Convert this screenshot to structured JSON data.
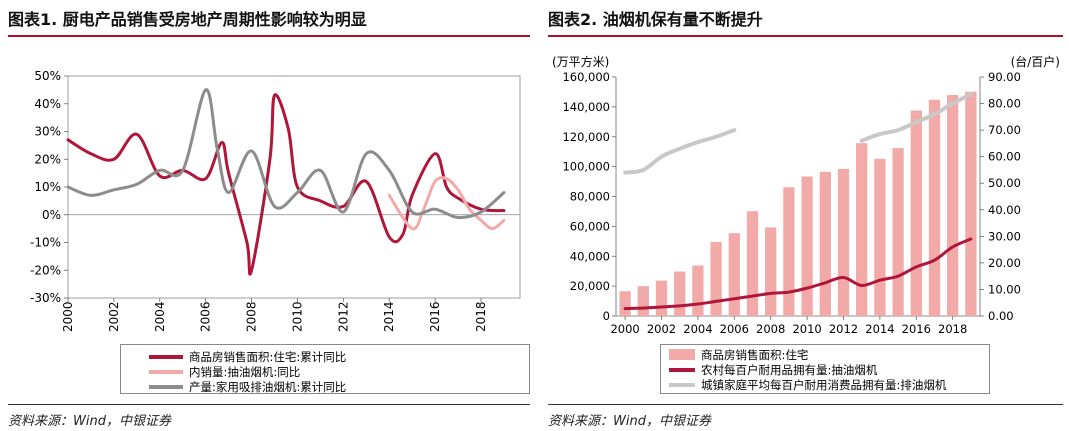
{
  "left": {
    "title": "图表1. 厨电产品销售受房地产周期性影响较为明显",
    "source": "资料来源：Wind，中银证券",
    "legend": [
      {
        "label": "商品房销售面积:住宅:累计同比",
        "color": "#b0153a"
      },
      {
        "label": "内销量:抽油烟机:同比",
        "color": "#f2aaa8"
      },
      {
        "label": "产量:家用吸排油烟机:累计同比",
        "color": "#8c8c8c"
      }
    ]
  },
  "right": {
    "title": "图表2. 油烟机保有量不断提升",
    "source": "资料来源：Wind，中银证券",
    "left_unit": "(万平方米)",
    "right_unit": "(台/百户)",
    "legend": [
      {
        "label": "商品房销售面积:住宅",
        "color": "#f2aaa8"
      },
      {
        "label": "农村每百户耐用品拥有量:抽油烟机",
        "color": "#b0153a"
      },
      {
        "label": "城镇家庭平均每百户耐用消费品拥有量:排油烟机",
        "color": "#c8c8c8"
      }
    ]
  },
  "chart_data": [
    {
      "type": "line",
      "title": "图表1. 厨电产品销售受房地产周期性影响较为明显",
      "ylim": [
        -30,
        50
      ],
      "yticks": [
        "50%",
        "40%",
        "30%",
        "20%",
        "10%",
        "0%",
        "-10%",
        "-20%",
        "-30%"
      ],
      "ytick_values": [
        50,
        40,
        30,
        20,
        10,
        0,
        -10,
        -20,
        -30
      ],
      "xlim": [
        2000,
        2019.7
      ],
      "xticks": [
        "2000",
        "2002",
        "2004",
        "2006",
        "2008",
        "2010",
        "2012",
        "2014",
        "2016",
        "2018"
      ],
      "xtick_values": [
        2000,
        2002,
        2004,
        2006,
        2008,
        2010,
        2012,
        2014,
        2016,
        2018
      ],
      "series": [
        {
          "name": "商品房销售面积:住宅:累计同比",
          "color": "#b0153a",
          "width": 3,
          "x": [
            2000,
            2001,
            2002,
            2003,
            2004,
            2005,
            2006,
            2006.7,
            2007,
            2007.8,
            2008,
            2008.8,
            2009,
            2009.6,
            2010,
            2011,
            2012,
            2013,
            2014,
            2014.6,
            2015,
            2016,
            2016.5,
            2017,
            2018,
            2019
          ],
          "y": [
            27,
            22,
            20,
            29,
            14,
            16,
            13,
            26,
            15,
            -10,
            -20,
            20,
            43,
            31,
            10,
            5,
            3,
            12,
            -8,
            -7,
            7,
            22,
            10,
            6,
            2,
            1.5
          ]
        },
        {
          "name": "内销量:抽油烟机:同比",
          "color": "#f2aaa8",
          "width": 3,
          "x": [
            2014,
            2015,
            2015.5,
            2016,
            2016.5,
            2017,
            2017.5,
            2018,
            2018.5,
            2019
          ],
          "y": [
            7,
            -5,
            2,
            12,
            13,
            9,
            2,
            -2,
            -5,
            -2
          ]
        },
        {
          "name": "产量:家用吸排油烟机:累计同比",
          "color": "#8c8c8c",
          "width": 3,
          "x": [
            2000,
            2001,
            2002,
            2003,
            2004,
            2005,
            2006,
            2006.5,
            2007,
            2008,
            2009,
            2010,
            2011,
            2012,
            2013,
            2014,
            2015,
            2016,
            2017,
            2018,
            2019
          ],
          "y": [
            10,
            7,
            9,
            11,
            16,
            16,
            45,
            24,
            8,
            23,
            3,
            8,
            16,
            1,
            22,
            16,
            1,
            2,
            -1,
            1,
            8
          ]
        }
      ]
    },
    {
      "type": "bar",
      "title": "图表2. 油烟机保有量不断提升",
      "categories": [
        "2000",
        "2001",
        "2002",
        "2003",
        "2004",
        "2005",
        "2006",
        "2007",
        "2008",
        "2009",
        "2010",
        "2011",
        "2012",
        "2013",
        "2014",
        "2015",
        "2016",
        "2017",
        "2018",
        "2019"
      ],
      "xticks": [
        "2000",
        "2002",
        "2004",
        "2006",
        "2008",
        "2010",
        "2012",
        "2014",
        "2016",
        "2018"
      ],
      "ylabel": "(万平方米)",
      "ylim": [
        0,
        160000
      ],
      "yticks": [
        "160,000",
        "140,000",
        "120,000",
        "100,000",
        "80,000",
        "60,000",
        "40,000",
        "20,000",
        "0"
      ],
      "ytick_values": [
        160000,
        140000,
        120000,
        100000,
        80000,
        60000,
        40000,
        20000,
        0
      ],
      "y2label": "(台/百户)",
      "y2lim": [
        0,
        90
      ],
      "y2ticks": [
        "90.00",
        "80.00",
        "70.00",
        "60.00",
        "50.00",
        "40.00",
        "30.00",
        "20.00",
        "10.00",
        "0.00"
      ],
      "y2tick_values": [
        90,
        80,
        70,
        60,
        50,
        40,
        30,
        20,
        10,
        0
      ],
      "series": [
        {
          "name": "商品房销售面积:住宅",
          "type": "bar",
          "axis": "left",
          "color": "#f2aaa8",
          "values": [
            16570,
            19939,
            23702,
            29779,
            33820,
            49588,
            55423,
            70136,
            59280,
            86185,
            93377,
            96528,
            98468,
            115722,
            105188,
            112412,
            137540,
            144789,
            147929,
            150144
          ]
        },
        {
          "name": "农村每百户耐用品拥有量:抽油烟机",
          "type": "line",
          "axis": "right",
          "color": "#b0153a",
          "width": 3,
          "values": [
            2.8,
            3.0,
            3.4,
            3.8,
            4.5,
            5.5,
            6.5,
            7.5,
            8.5,
            9.0,
            10.5,
            12.5,
            14.5,
            11.5,
            13.5,
            15.0,
            18.5,
            21.0,
            26.0,
            29.0
          ]
        },
        {
          "name": "城镇家庭平均每百户耐用消费品拥有量:排油烟机",
          "type": "line",
          "axis": "right",
          "color": "#c8c8c8",
          "width": 4,
          "values": [
            54.0,
            55.0,
            60.0,
            63.0,
            65.5,
            67.5,
            70.0,
            null,
            null,
            null,
            null,
            null,
            null,
            66.0,
            68.5,
            70.0,
            73.0,
            76.0,
            80.0,
            83.5
          ]
        }
      ]
    }
  ]
}
